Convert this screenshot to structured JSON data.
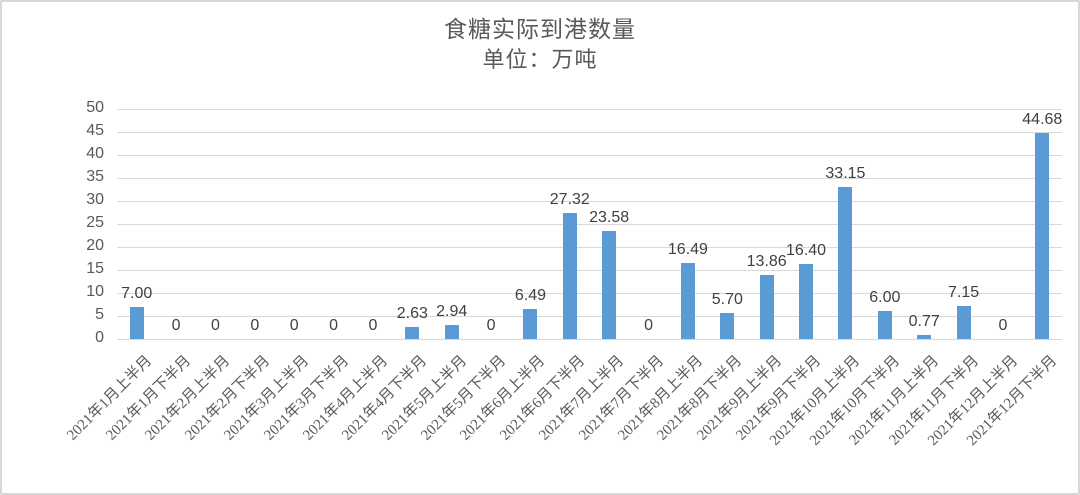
{
  "chart_data": {
    "type": "bar",
    "title": "食糖实际到港数量",
    "subtitle": "单位：万吨",
    "categories": [
      "2021年1月上半月",
      "2021年1月下半月",
      "2021年2月上半月",
      "2021年2月下半月",
      "2021年3月上半月",
      "2021年3月下半月",
      "2021年4月上半月",
      "2021年4月下半月",
      "2021年5月上半月",
      "2021年5月下半月",
      "2021年6月上半月",
      "2021年6月下半月",
      "2021年7月上半月",
      "2021年7月下半月",
      "2021年8月上半月",
      "2021年8月下半月",
      "2021年9月上半月",
      "2021年9月下半月",
      "2021年10月上半月",
      "2021年10月下半月",
      "2021年11月上半月",
      "2021年11月下半月",
      "2021年12月上半月",
      "2021年12月下半月"
    ],
    "values": [
      7.0,
      0,
      0,
      0,
      0,
      0,
      0,
      2.63,
      2.94,
      0,
      6.49,
      27.32,
      23.58,
      0,
      16.49,
      5.7,
      13.86,
      16.4,
      33.15,
      6.0,
      0.77,
      7.15,
      0,
      44.68
    ],
    "value_labels": [
      "7.00",
      "0",
      "0",
      "0",
      "0",
      "0",
      "0",
      "2.63",
      "2.94",
      "0",
      "6.49",
      "27.32",
      "23.58",
      "0",
      "16.49",
      "5.70",
      "13.86",
      "16.40",
      "33.15",
      "6.00",
      "0.77",
      "7.15",
      "0",
      "44.68"
    ],
    "xlabel": "",
    "ylabel": "",
    "ylim": [
      0,
      50
    ],
    "yticks": [
      0,
      5,
      10,
      15,
      20,
      25,
      30,
      35,
      40,
      45,
      50
    ],
    "grid": "horizontal",
    "legend": "none",
    "colors": {
      "bar": "#5b9bd5",
      "gridline": "#d9d9d9",
      "axis_text": "#595959",
      "data_label_text": "#404040",
      "frame_border": "#d7d7d7",
      "background": "#ffffff"
    }
  }
}
